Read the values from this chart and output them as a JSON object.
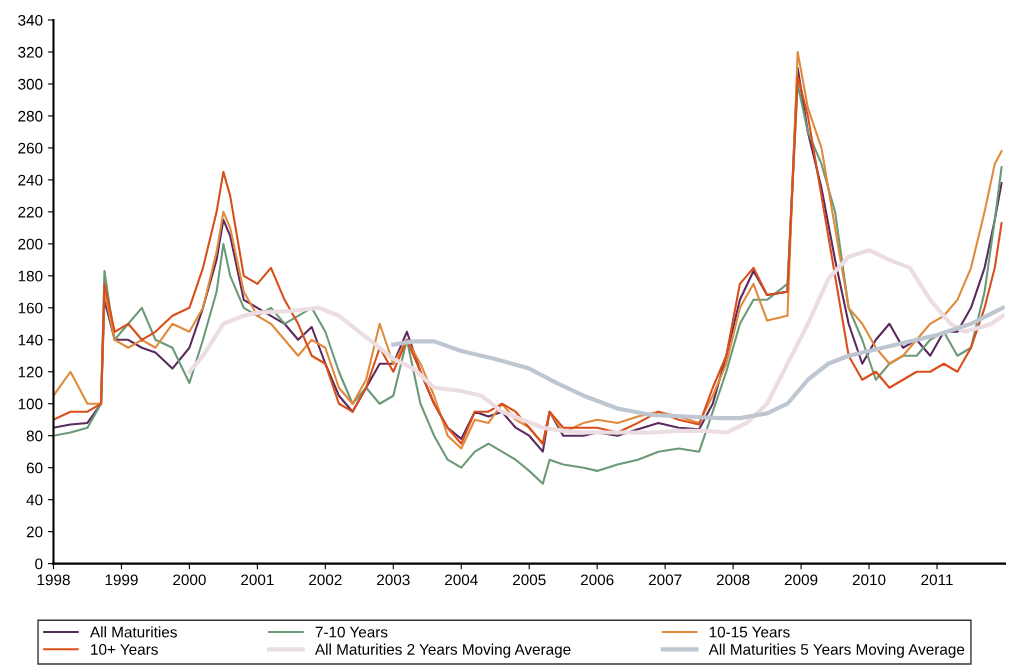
{
  "chart_data": {
    "type": "line",
    "xlim": [
      1998,
      2012
    ],
    "xticks": [
      1998,
      1999,
      2000,
      2001,
      2002,
      2003,
      2004,
      2005,
      2006,
      2007,
      2008,
      2009,
      2010,
      2011
    ],
    "ylim": [
      0,
      340
    ],
    "yticks": [
      0,
      20,
      40,
      60,
      80,
      100,
      120,
      140,
      160,
      180,
      200,
      220,
      240,
      260,
      280,
      300,
      320,
      340
    ],
    "grid": false,
    "legend": "bottom",
    "marker": "none",
    "line_style": "solid",
    "x": [
      1998.0,
      1998.25,
      1998.5,
      1998.7,
      1998.75,
      1998.9,
      1999.1,
      1999.3,
      1999.5,
      1999.75,
      2000.0,
      2000.2,
      2000.4,
      2000.5,
      2000.6,
      2000.8,
      2001.0,
      2001.2,
      2001.4,
      2001.6,
      2001.8,
      2002.0,
      2002.2,
      2002.4,
      2002.6,
      2002.8,
      2003.0,
      2003.2,
      2003.4,
      2003.6,
      2003.8,
      2004.0,
      2004.2,
      2004.4,
      2004.6,
      2004.8,
      2005.0,
      2005.2,
      2005.3,
      2005.5,
      2005.8,
      2006.0,
      2006.3,
      2006.6,
      2006.9,
      2007.2,
      2007.5,
      2007.7,
      2007.9,
      2008.1,
      2008.3,
      2008.5,
      2008.8,
      2008.95,
      2009.1,
      2009.3,
      2009.5,
      2009.7,
      2009.9,
      2010.1,
      2010.3,
      2010.5,
      2010.7,
      2010.9,
      2011.1,
      2011.3,
      2011.5,
      2011.7,
      2011.85,
      2011.95
    ],
    "series": [
      {
        "name": "All Maturities",
        "color": "#5b2a5e",
        "values": [
          85,
          87,
          88,
          100,
          165,
          140,
          140,
          135,
          132,
          122,
          135,
          160,
          190,
          215,
          205,
          165,
          160,
          155,
          150,
          140,
          148,
          125,
          105,
          95,
          110,
          125,
          125,
          145,
          120,
          100,
          85,
          78,
          95,
          92,
          95,
          85,
          80,
          70,
          95,
          80,
          80,
          82,
          80,
          84,
          88,
          85,
          84,
          100,
          130,
          165,
          183,
          168,
          170,
          310,
          270,
          235,
          190,
          150,
          125,
          140,
          150,
          135,
          140,
          130,
          145,
          145,
          160,
          185,
          215,
          238
        ]
      },
      {
        "name": "7-10 Years",
        "color": "#6a9a78",
        "values": [
          80,
          82,
          85,
          100,
          183,
          140,
          150,
          160,
          140,
          135,
          113,
          140,
          170,
          200,
          180,
          160,
          155,
          160,
          150,
          155,
          160,
          145,
          120,
          100,
          110,
          100,
          105,
          140,
          100,
          80,
          65,
          60,
          70,
          75,
          70,
          65,
          58,
          50,
          65,
          62,
          60,
          58,
          62,
          65,
          70,
          72,
          70,
          95,
          120,
          150,
          165,
          165,
          175,
          300,
          270,
          250,
          220,
          160,
          140,
          115,
          125,
          130,
          130,
          140,
          145,
          130,
          135,
          170,
          215,
          248
        ]
      },
      {
        "name": "10-15 Years",
        "color": "#e08a3c",
        "values": [
          105,
          120,
          100,
          100,
          170,
          140,
          135,
          140,
          135,
          150,
          145,
          160,
          195,
          220,
          210,
          170,
          155,
          150,
          140,
          130,
          140,
          135,
          110,
          100,
          115,
          150,
          125,
          140,
          125,
          105,
          80,
          72,
          90,
          88,
          100,
          90,
          85,
          75,
          95,
          82,
          88,
          90,
          88,
          92,
          95,
          92,
          88,
          105,
          125,
          160,
          175,
          152,
          155,
          320,
          285,
          260,
          210,
          160,
          150,
          135,
          125,
          130,
          140,
          150,
          155,
          165,
          185,
          220,
          250,
          258
        ]
      },
      {
        "name": "10+ Years",
        "color": "#d94e1a",
        "values": [
          90,
          95,
          95,
          100,
          175,
          145,
          150,
          140,
          145,
          155,
          160,
          185,
          220,
          245,
          230,
          180,
          175,
          185,
          165,
          150,
          130,
          125,
          100,
          95,
          110,
          135,
          120,
          140,
          120,
          100,
          85,
          75,
          95,
          95,
          100,
          95,
          85,
          75,
          95,
          85,
          85,
          85,
          82,
          88,
          95,
          90,
          87,
          110,
          130,
          175,
          185,
          168,
          170,
          305,
          280,
          230,
          180,
          130,
          115,
          120,
          110,
          115,
          120,
          120,
          125,
          120,
          135,
          160,
          185,
          213
        ]
      },
      {
        "name": "All Maturities 2 Years Moving Average",
        "color": "#ecdde3",
        "x": [
          2000.0,
          2000.2,
          2000.5,
          2000.8,
          2001.0,
          2001.5,
          2001.9,
          2002.2,
          2002.5,
          2002.8,
          2003.0,
          2003.3,
          2003.6,
          2004.0,
          2004.3,
          2004.6,
          2004.9,
          2005.2,
          2005.5,
          2005.8,
          2006.3,
          2006.8,
          2007.2,
          2007.6,
          2007.9,
          2008.2,
          2008.5,
          2008.8,
          2009.1,
          2009.4,
          2009.7,
          2010.0,
          2010.3,
          2010.6,
          2010.9,
          2011.2,
          2011.4,
          2011.66,
          2011.8,
          2011.97
        ],
        "values": [
          120,
          130,
          150,
          155,
          157,
          158,
          160,
          155,
          145,
          135,
          128,
          122,
          110,
          108,
          105,
          95,
          90,
          85,
          83,
          82,
          82,
          82,
          83,
          83,
          82,
          88,
          100,
          125,
          150,
          178,
          192,
          196,
          190,
          185,
          165,
          150,
          145,
          148,
          150,
          155
        ]
      },
      {
        "name": "All Maturities 5 Years Moving Average",
        "color": "#bec6d2",
        "x": [
          2003.0,
          2003.3,
          2003.6,
          2004.0,
          2004.5,
          2005.0,
          2005.4,
          2005.8,
          2006.3,
          2006.8,
          2007.3,
          2007.8,
          2008.1,
          2008.5,
          2008.8,
          2009.1,
          2009.4,
          2009.7,
          2010.0,
          2010.5,
          2011.0,
          2011.5,
          2011.97
        ],
        "values": [
          137,
          139,
          139,
          133,
          128,
          122,
          113,
          105,
          97,
          93,
          92,
          91,
          91,
          94,
          100,
          115,
          125,
          130,
          133,
          138,
          143,
          150,
          160
        ]
      }
    ]
  }
}
